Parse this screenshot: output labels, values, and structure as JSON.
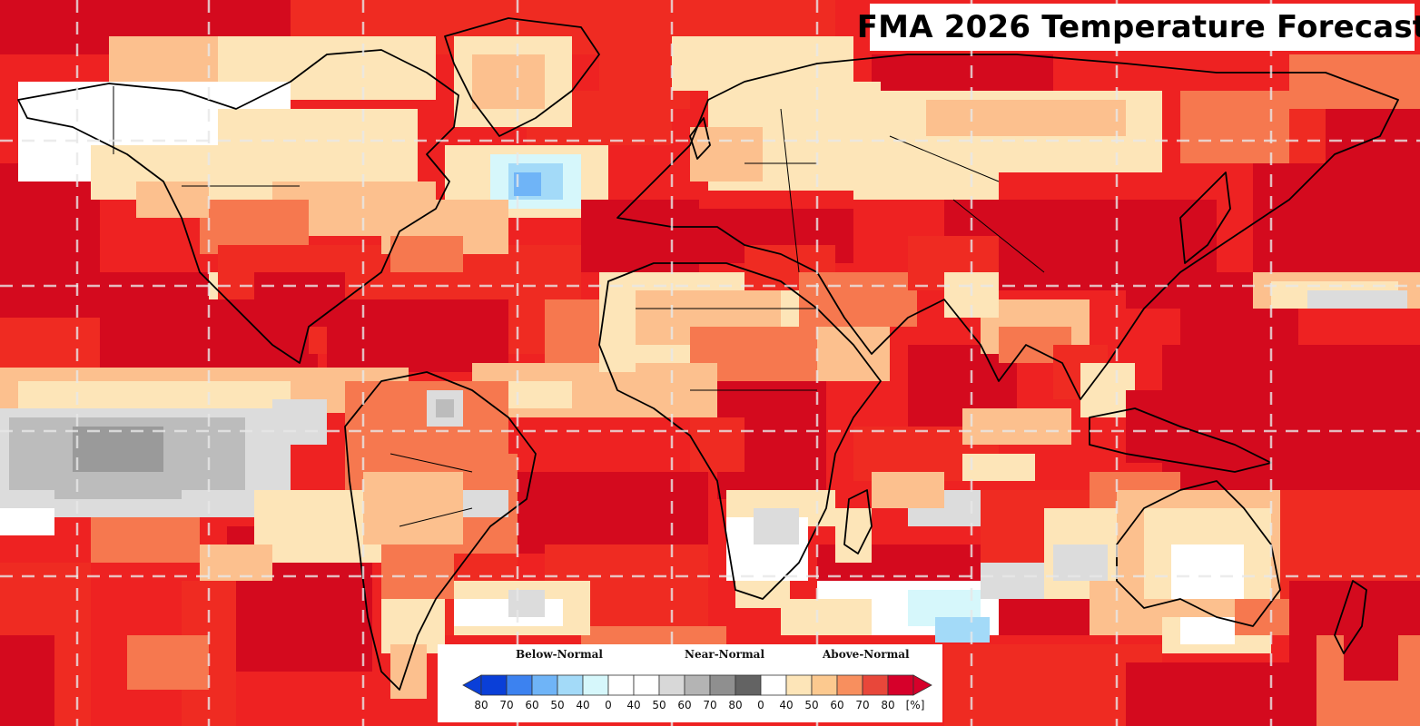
{
  "title": "FMA 2026 Temperature Forecast",
  "legend": {
    "categories": {
      "below": "Below-Normal",
      "near": "Near-Normal",
      "above": "Above-Normal"
    },
    "bins": [
      {
        "label": "80",
        "color": "#0a3fd8"
      },
      {
        "label": "70",
        "color": "#3c82f0"
      },
      {
        "label": "60",
        "color": "#6fb4f7"
      },
      {
        "label": "50",
        "color": "#a3daf8"
      },
      {
        "label": "40",
        "color": "#d6f7fb"
      },
      {
        "label": "0",
        "color": "#ffffff"
      },
      {
        "label": "40",
        "color": "#ffffff"
      },
      {
        "label": "50",
        "color": "#d8d8d8"
      },
      {
        "label": "60",
        "color": "#b4b4b4"
      },
      {
        "label": "70",
        "color": "#8f8f8f"
      },
      {
        "label": "80",
        "color": "#636363"
      },
      {
        "label": "0",
        "color": "#ffffff"
      },
      {
        "label": "40",
        "color": "#fde5b8"
      },
      {
        "label": "50",
        "color": "#fcc98f"
      },
      {
        "label": "60",
        "color": "#f88f5e"
      },
      {
        "label": "70",
        "color": "#e8473a"
      },
      {
        "label": "80",
        "color": "#d6002a"
      }
    ],
    "last_label": "[%]"
  },
  "colors": {
    "ocean_base": "#ee2222",
    "land_base": "#f89a6a",
    "coast": "#000000",
    "grid": "#e8e8e8"
  }
}
